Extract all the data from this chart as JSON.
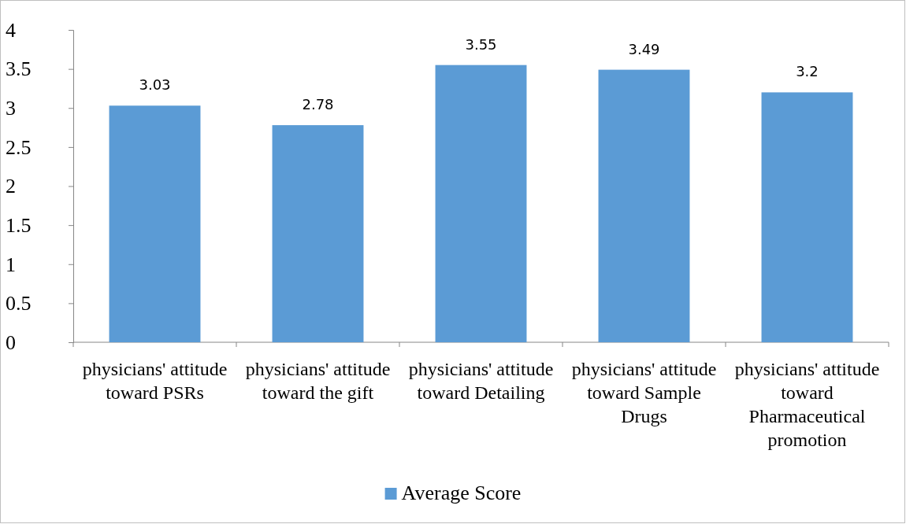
{
  "chart_data": {
    "type": "bar",
    "categories": [
      "physicians' attitude toward PSRs",
      "physicians' attitude toward the gift",
      "physicians' attitude toward Detailing",
      "physicians' attitude toward Sample Drugs",
      "physicians' attitude toward Pharmaceutical promotion"
    ],
    "series": [
      {
        "name": "Average Score",
        "color": "#5b9bd5",
        "values": [
          3.03,
          2.78,
          3.55,
          3.49,
          3.2
        ]
      }
    ],
    "ylim": [
      0,
      4
    ],
    "yticks": [
      0,
      0.5,
      1,
      1.5,
      2,
      2.5,
      3,
      3.5,
      4
    ],
    "data_labels": true,
    "grid": false,
    "legend": "bottom"
  }
}
